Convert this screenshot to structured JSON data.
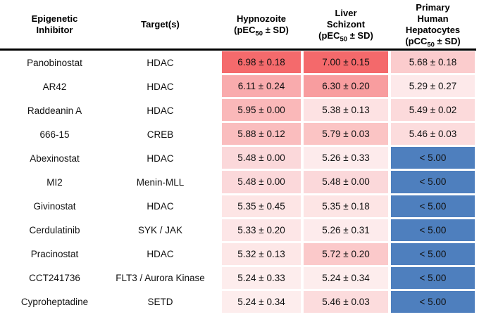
{
  "table": {
    "header": {
      "columns": [
        {
          "lines": [
            "Epigenetic",
            "Inhibitor"
          ]
        },
        {
          "lines": [
            "Target(s)"
          ]
        },
        {
          "lines": [
            "Hypnozoite"
          ],
          "metric": {
            "pre": "(pEC",
            "sub": "50",
            "post": " ± SD)"
          }
        },
        {
          "lines": [
            "Liver",
            "Schizont"
          ],
          "metric": {
            "pre": "(pEC",
            "sub": "50",
            "post": " ± SD)"
          }
        },
        {
          "lines": [
            "Primary",
            "Human",
            "Hepatocytes"
          ],
          "metric": {
            "pre": "(pCC",
            "sub": "50",
            "post": " ± SD)"
          }
        }
      ]
    },
    "rows": [
      {
        "inhibitor": "Panobinostat",
        "target": "HDAC",
        "cells": [
          {
            "text": "6.98 ± 0.18",
            "bg": "#f46a6c"
          },
          {
            "text": "7.00 ± 0.15",
            "bg": "#f4696b"
          },
          {
            "text": "5.68 ± 0.18",
            "bg": "#fbcccd"
          }
        ]
      },
      {
        "inhibitor": "AR42",
        "target": "HDAC",
        "cells": [
          {
            "text": "6.11 ± 0.24",
            "bg": "#f9abad"
          },
          {
            "text": "6.30 ± 0.20",
            "bg": "#f89d9f"
          },
          {
            "text": "5.29 ± 0.27",
            "bg": "#fde9ea"
          }
        ]
      },
      {
        "inhibitor": "Raddeanin A",
        "target": "HDAC",
        "cells": [
          {
            "text": "5.95 ± 0.00",
            "bg": "#fab8b9"
          },
          {
            "text": "5.38 ± 0.13",
            "bg": "#fde2e3"
          },
          {
            "text": "5.49 ± 0.02",
            "bg": "#fcdadb"
          }
        ]
      },
      {
        "inhibitor": "666-15",
        "target": "CREB",
        "cells": [
          {
            "text": "5.88 ± 0.12",
            "bg": "#fabdbe"
          },
          {
            "text": "5.79 ± 0.03",
            "bg": "#fbc4c4"
          },
          {
            "text": "5.46 ± 0.03",
            "bg": "#fcdcdd"
          }
        ]
      },
      {
        "inhibitor": "Abexinostat",
        "target": "HDAC",
        "cells": [
          {
            "text": "5.48 ± 0.00",
            "bg": "#fbd8da"
          },
          {
            "text": "5.26 ± 0.33",
            "bg": "#fdebec"
          },
          {
            "text": "< 5.00",
            "bg": "#4e7fbe"
          }
        ]
      },
      {
        "inhibitor": "MI2",
        "target": "Menin-MLL",
        "cells": [
          {
            "text": "5.48 ± 0.00",
            "bg": "#fbd8da"
          },
          {
            "text": "5.48 ± 0.00",
            "bg": "#fbd8da"
          },
          {
            "text": "< 5.00",
            "bg": "#4e7fbe"
          }
        ]
      },
      {
        "inhibitor": "Givinostat",
        "target": "HDAC",
        "cells": [
          {
            "text": "5.35 ± 0.45",
            "bg": "#fde5e5"
          },
          {
            "text": "5.35 ± 0.18",
            "bg": "#fde5e5"
          },
          {
            "text": "< 5.00",
            "bg": "#4e7fbe"
          }
        ]
      },
      {
        "inhibitor": "Cerdulatinib",
        "target": "SYK / JAK",
        "cells": [
          {
            "text": "5.33 ± 0.20",
            "bg": "#fde6e7"
          },
          {
            "text": "5.26 ± 0.31",
            "bg": "#fdebec"
          },
          {
            "text": "< 5.00",
            "bg": "#4e7fbe"
          }
        ]
      },
      {
        "inhibitor": "Pracinostat",
        "target": "HDAC",
        "cells": [
          {
            "text": "5.32 ± 0.13",
            "bg": "#fde7e7"
          },
          {
            "text": "5.72 ± 0.20",
            "bg": "#fbc9ca"
          },
          {
            "text": "< 5.00",
            "bg": "#4e7fbe"
          }
        ]
      },
      {
        "inhibitor": "CCT241736",
        "target": "FLT3 / Aurora Kinase",
        "cells": [
          {
            "text": "5.24 ± 0.33",
            "bg": "#fdeded"
          },
          {
            "text": "5.24 ± 0.34",
            "bg": "#fdeded"
          },
          {
            "text": "< 5.00",
            "bg": "#4e7fbe"
          }
        ]
      },
      {
        "inhibitor": "Cyproheptadine",
        "target": "SETD",
        "cells": [
          {
            "text": "5.24 ± 0.34",
            "bg": "#fdeded"
          },
          {
            "text": "5.46 ± 0.03",
            "bg": "#fcdcdd"
          },
          {
            "text": "< 5.00",
            "bg": "#4e7fbe"
          }
        ]
      }
    ]
  },
  "colors": {
    "heat_high": "#f4696b",
    "heat_low": "#ffffff",
    "inactive_blue": "#4e7fbe",
    "header_rule": "#000000",
    "text": "#111111"
  },
  "chart_data": {
    "type": "heatmap",
    "title": "",
    "columns": [
      "Epigenetic Inhibitor",
      "Target(s)",
      "Hypnozoite (pEC50 ± SD)",
      "Liver Schizont (pEC50 ± SD)",
      "Primary Human Hepatocytes (pCC50 ± SD)"
    ],
    "inhibitors": [
      "Panobinostat",
      "AR42",
      "Raddeanin A",
      "666-15",
      "Abexinostat",
      "MI2",
      "Givinostat",
      "Cerdulatinib",
      "Pracinostat",
      "CCT241736",
      "Cyproheptadine"
    ],
    "targets": [
      "HDAC",
      "HDAC",
      "HDAC",
      "CREB",
      "HDAC",
      "Menin-MLL",
      "HDAC",
      "SYK / JAK",
      "HDAC",
      "FLT3 / Aurora Kinase",
      "SETD"
    ],
    "values": [
      [
        6.98,
        7.0,
        5.68
      ],
      [
        6.11,
        6.3,
        5.29
      ],
      [
        5.95,
        5.38,
        5.49
      ],
      [
        5.88,
        5.79,
        5.46
      ],
      [
        5.48,
        5.26,
        null
      ],
      [
        5.48,
        5.48,
        null
      ],
      [
        5.35,
        5.35,
        null
      ],
      [
        5.33,
        5.26,
        null
      ],
      [
        5.32,
        5.72,
        null
      ],
      [
        5.24,
        5.24,
        null
      ],
      [
        5.24,
        5.46,
        null
      ]
    ],
    "sd": [
      [
        0.18,
        0.15,
        0.18
      ],
      [
        0.24,
        0.2,
        0.27
      ],
      [
        0.0,
        0.13,
        0.02
      ],
      [
        0.12,
        0.03,
        0.03
      ],
      [
        0.0,
        0.33,
        null
      ],
      [
        0.0,
        0.0,
        null
      ],
      [
        0.45,
        0.18,
        null
      ],
      [
        0.2,
        0.31,
        null
      ],
      [
        0.13,
        0.2,
        null
      ],
      [
        0.33,
        0.34,
        null
      ],
      [
        0.34,
        0.03,
        null
      ]
    ],
    "heat_scale": {
      "min": 5.0,
      "max": 7.0,
      "low_color": "#ffffff",
      "high_color": "#f4696b",
      "below_limit_label": "< 5.00",
      "below_limit_color": "#4e7fbe"
    },
    "legend_position": "none",
    "grid": false
  }
}
